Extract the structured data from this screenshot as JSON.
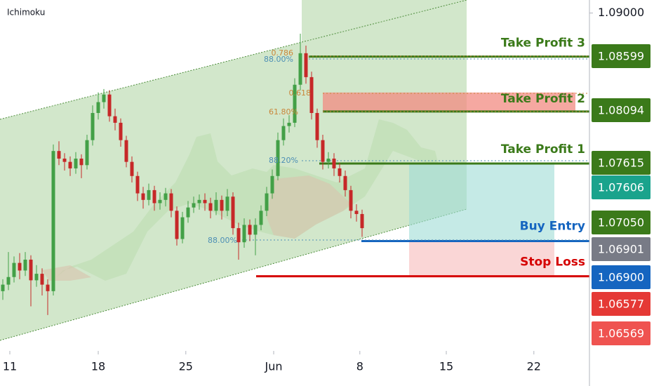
{
  "chart_data": {
    "type": "candlestick",
    "indicator": "Ichimoku",
    "xlim": [
      -0.5,
      104.5
    ],
    "ylim": [
      1.0589,
      1.0912
    ],
    "xticks": [
      {
        "value": 1.25,
        "label": "11"
      },
      {
        "value": 17,
        "label": "18"
      },
      {
        "value": 32.6,
        "label": "25"
      },
      {
        "value": 48.25,
        "label": "Jun"
      },
      {
        "value": 63.6,
        "label": "8"
      },
      {
        "value": 79,
        "label": "15"
      },
      {
        "value": 94.6,
        "label": "22"
      }
    ],
    "yticks": [
      {
        "value": 1.09,
        "label": "1.09000"
      }
    ],
    "up_color": "#43a047",
    "down_color": "#c62828",
    "open": [
      1.0644,
      1.065,
      1.0657,
      1.067,
      1.0663,
      1.0673,
      1.0654,
      1.066,
      1.065,
      1.0644,
      1.0773,
      1.0766,
      1.0763,
      1.0757,
      1.0766,
      1.076,
      1.0783,
      1.0808,
      1.0818,
      1.0825,
      1.0805,
      1.0799,
      1.0783,
      1.0763,
      1.075,
      1.0734,
      1.0728,
      1.0737,
      1.0725,
      1.0728,
      1.0734,
      1.0718,
      1.0692,
      1.0712,
      1.0721,
      1.0725,
      1.0728,
      1.0725,
      1.0718,
      1.0728,
      1.0718,
      1.0731,
      1.0702,
      1.0689,
      1.0705,
      1.0696,
      1.0705,
      1.0718,
      1.0734,
      1.075,
      1.0783,
      1.0796,
      1.0799,
      1.0834,
      1.0863,
      1.0841,
      1.0808,
      1.0783,
      1.0763,
      1.0766,
      1.0757,
      1.075,
      1.0737,
      1.0718,
      1.0715
    ],
    "high": [
      1.0655,
      1.068,
      1.0676,
      1.0679,
      1.068,
      1.0677,
      1.0668,
      1.0665,
      1.0655,
      1.0779,
      1.0782,
      1.0771,
      1.0768,
      1.0772,
      1.077,
      1.0788,
      1.0815,
      1.0827,
      1.083,
      1.0829,
      1.0812,
      1.0803,
      1.0787,
      1.0768,
      1.0754,
      1.074,
      1.0743,
      1.0741,
      1.0735,
      1.0739,
      1.0738,
      1.0722,
      1.0717,
      1.0727,
      1.0731,
      1.0733,
      1.0734,
      1.073,
      1.0735,
      1.0732,
      1.0738,
      1.0735,
      1.0707,
      1.0711,
      1.071,
      1.0711,
      1.0723,
      1.074,
      1.0756,
      1.079,
      1.0803,
      1.0806,
      1.084,
      1.0881,
      1.087,
      1.0846,
      1.0812,
      1.0788,
      1.0772,
      1.0771,
      1.0762,
      1.0755,
      1.0741,
      1.0724,
      1.0719
    ],
    "low": [
      1.0636,
      1.0645,
      1.0652,
      1.0655,
      1.0658,
      1.063,
      1.0648,
      1.064,
      1.0622,
      1.064,
      1.076,
      1.0755,
      1.075,
      1.0752,
      1.0748,
      1.0756,
      1.0778,
      1.0802,
      1.0812,
      1.08,
      1.0792,
      1.0777,
      1.0758,
      1.0744,
      1.0727,
      1.072,
      1.0723,
      1.0718,
      1.0719,
      1.0722,
      1.0712,
      1.0686,
      1.0688,
      1.0707,
      1.0716,
      1.0719,
      1.0718,
      1.0711,
      1.0714,
      1.071,
      1.0713,
      1.0696,
      1.0673,
      1.0684,
      1.069,
      1.0677,
      1.07,
      1.0713,
      1.0729,
      1.0746,
      1.0778,
      1.079,
      1.0795,
      1.0829,
      1.0835,
      1.0802,
      1.0776,
      1.0756,
      1.0757,
      1.075,
      1.0744,
      1.0731,
      1.0711,
      1.0708,
      1.0694
    ],
    "close": [
      1.065,
      1.0657,
      1.067,
      1.0663,
      1.0673,
      1.0654,
      1.066,
      1.065,
      1.0644,
      1.0773,
      1.0766,
      1.0763,
      1.0757,
      1.0766,
      1.076,
      1.0783,
      1.0808,
      1.0818,
      1.0825,
      1.0805,
      1.0799,
      1.0783,
      1.0763,
      1.075,
      1.0734,
      1.0728,
      1.0737,
      1.0725,
      1.0728,
      1.0734,
      1.0718,
      1.0692,
      1.0712,
      1.0721,
      1.0725,
      1.0728,
      1.0725,
      1.0718,
      1.0728,
      1.0718,
      1.0731,
      1.0702,
      1.0689,
      1.0705,
      1.0696,
      1.0705,
      1.0718,
      1.0734,
      1.075,
      1.0783,
      1.0796,
      1.0799,
      1.0834,
      1.0863,
      1.0841,
      1.0808,
      1.0783,
      1.0763,
      1.0766,
      1.0757,
      1.075,
      1.0737,
      1.0718,
      1.0715,
      1.0702
    ],
    "levels": [
      {
        "name": "Take Profit 3",
        "value": 1.08599,
        "color": "#3b7a1a"
      },
      {
        "name": "Take Profit 2",
        "value": 1.08094,
        "color": "#3b7a1a"
      },
      {
        "name": "Take Profit 1",
        "value": 1.07615,
        "color": "#3b7a1a"
      },
      {
        "name": "Buy Entry",
        "value": 1.06901,
        "color": "#1565c0"
      },
      {
        "name": "Stop Loss",
        "value": 1.06577,
        "color": "#d50000"
      }
    ],
    "price_tags": [
      {
        "value": 1.08599,
        "label": "1.08599",
        "color": "#3b7a1a"
      },
      {
        "value": 1.08094,
        "label": "1.08094",
        "color": "#3b7a1a"
      },
      {
        "value": 1.07615,
        "label": "1.07615",
        "color": "#3b7a1a"
      },
      {
        "value": 1.07606,
        "label": "1.07606",
        "color": "#1aa38c"
      },
      {
        "value": 1.0705,
        "label": "1.07050",
        "color": "#3b7a1a"
      },
      {
        "value": 1.06901,
        "label": "1.06901",
        "color": "#787b86"
      },
      {
        "value": 1.069,
        "label": "1.06900",
        "color": "#1565c0"
      },
      {
        "value": 1.06577,
        "label": "1.06577",
        "color": "#e53935"
      },
      {
        "value": 1.06569,
        "label": "1.06569",
        "color": "#ef5350"
      }
    ],
    "fib_labels": [
      "0.786",
      "88.00%",
      "0.618",
      "61.80%",
      "88.20%",
      "88.00%"
    ]
  }
}
